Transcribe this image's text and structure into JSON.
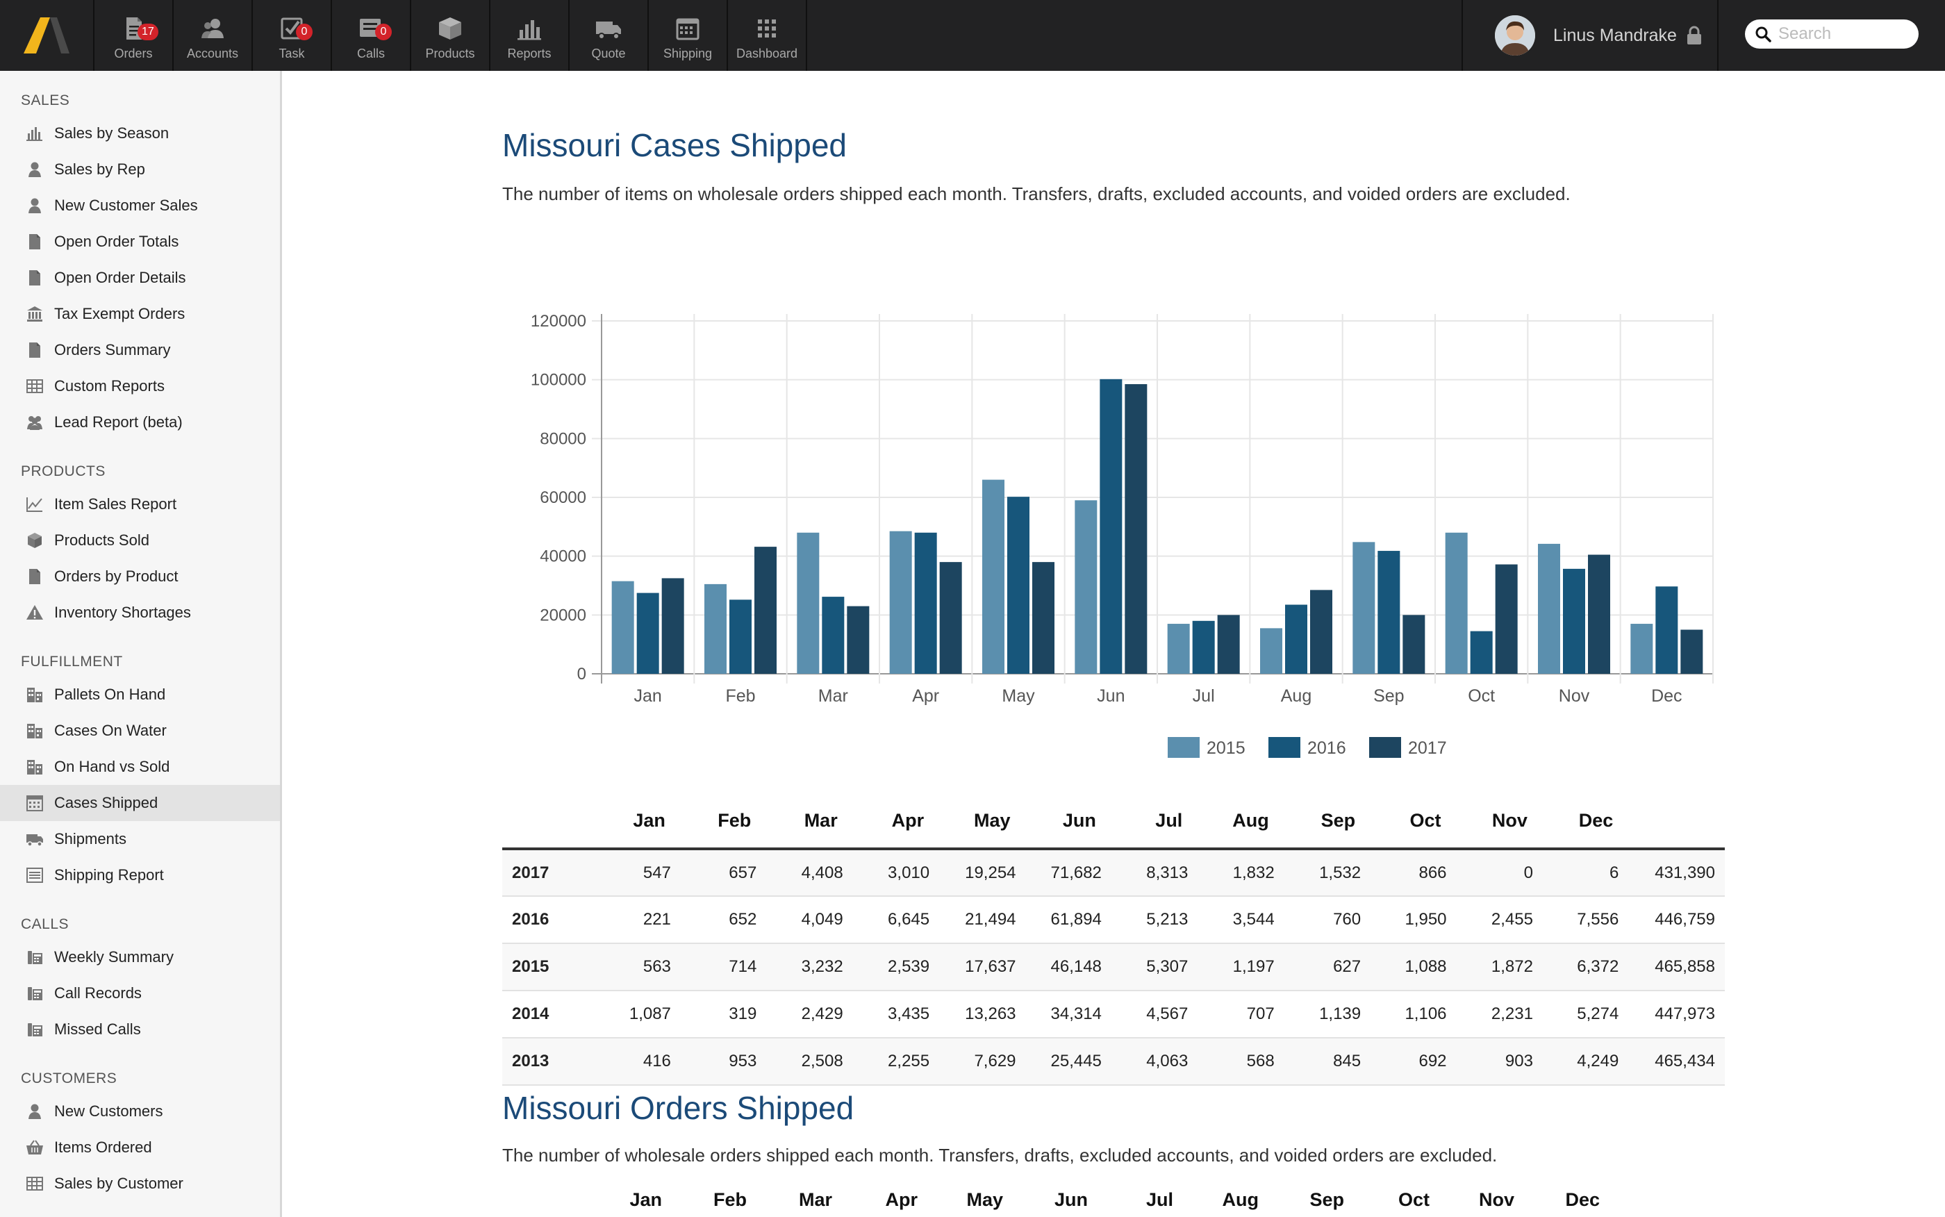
{
  "nav": {
    "items": [
      {
        "label": "Orders",
        "badge": "17",
        "icon": "orders-icon"
      },
      {
        "label": "Accounts",
        "badge": "",
        "icon": "accounts-icon"
      },
      {
        "label": "Task",
        "badge": "0",
        "icon": "task-icon"
      },
      {
        "label": "Calls",
        "badge": "0",
        "icon": "calls-icon"
      },
      {
        "label": "Products",
        "badge": "",
        "icon": "products-icon"
      },
      {
        "label": "Reports",
        "badge": "",
        "icon": "reports-icon"
      },
      {
        "label": "Quote",
        "badge": "",
        "icon": "quote-icon"
      },
      {
        "label": "Shipping",
        "badge": "",
        "icon": "shipping-icon"
      },
      {
        "label": "Dashboard",
        "badge": "",
        "icon": "dashboard-icon"
      }
    ],
    "user_name": "Linus Mandrake",
    "search_placeholder": "Search"
  },
  "sidebar": {
    "sections": [
      {
        "title": "SALES",
        "items": [
          {
            "label": "Sales by Season",
            "icon": "bar-chart-icon"
          },
          {
            "label": "Sales by Rep",
            "icon": "person-icon"
          },
          {
            "label": "New Customer Sales",
            "icon": "person-icon"
          },
          {
            "label": "Open Order Totals",
            "icon": "document-icon"
          },
          {
            "label": "Open Order Details",
            "icon": "document-icon"
          },
          {
            "label": "Tax Exempt Orders",
            "icon": "bank-icon"
          },
          {
            "label": "Orders Summary",
            "icon": "document-icon"
          },
          {
            "label": "Custom Reports",
            "icon": "table-icon"
          },
          {
            "label": "Lead Report (beta)",
            "icon": "group-icon"
          }
        ]
      },
      {
        "title": "PRODUCTS",
        "items": [
          {
            "label": "Item Sales Report",
            "icon": "line-chart-icon"
          },
          {
            "label": "Products Sold",
            "icon": "box-icon"
          },
          {
            "label": "Orders by Product",
            "icon": "document-icon"
          },
          {
            "label": "Inventory Shortages",
            "icon": "warning-icon"
          }
        ]
      },
      {
        "title": "FULFILLMENT",
        "items": [
          {
            "label": "Pallets On Hand",
            "icon": "building-icon"
          },
          {
            "label": "Cases On Water",
            "icon": "building-icon"
          },
          {
            "label": "On Hand vs Sold",
            "icon": "building-icon"
          },
          {
            "label": "Cases Shipped",
            "icon": "calendar-icon",
            "active": true
          },
          {
            "label": "Shipments",
            "icon": "truck-icon"
          },
          {
            "label": "Shipping Report",
            "icon": "list-icon"
          }
        ]
      },
      {
        "title": "CALLS",
        "items": [
          {
            "label": "Weekly Summary",
            "icon": "phone-icon"
          },
          {
            "label": "Call Records",
            "icon": "phone-icon"
          },
          {
            "label": "Missed Calls",
            "icon": "phone-icon"
          }
        ]
      },
      {
        "title": "CUSTOMERS",
        "items": [
          {
            "label": "New Customers",
            "icon": "person-icon"
          },
          {
            "label": "Items Ordered",
            "icon": "basket-icon"
          },
          {
            "label": "Sales by Customer",
            "icon": "table-icon"
          }
        ]
      }
    ]
  },
  "cases_section": {
    "title": "Missouri Cases Shipped",
    "description": "The number of items on wholesale orders shipped each month. Transfers, drafts, excluded accounts, and voided orders are excluded."
  },
  "orders_section": {
    "title": "Missouri Orders Shipped",
    "description": "The number of wholesale orders shipped each month. Transfers, drafts, excluded accounts, and voided orders are excluded."
  },
  "colors": {
    "s2015": "#5b8fae",
    "s2016": "#17567b",
    "s2017": "#1d4560",
    "title": "#1b4a78"
  },
  "chart_data": {
    "type": "bar",
    "title": "",
    "categories": [
      "Jan",
      "Feb",
      "Mar",
      "Apr",
      "May",
      "Jun",
      "Jul",
      "Aug",
      "Sep",
      "Oct",
      "Nov",
      "Dec"
    ],
    "series": [
      {
        "name": "2015",
        "values": [
          31500,
          30500,
          48000,
          48500,
          66000,
          59000,
          17000,
          15500,
          44800,
          48000,
          44200,
          17000
        ]
      },
      {
        "name": "2016",
        "values": [
          27500,
          25200,
          26200,
          48000,
          60200,
          100200,
          18000,
          23500,
          41800,
          14500,
          35700,
          29700
        ]
      },
      {
        "name": "2017",
        "values": [
          32500,
          43200,
          23000,
          38000,
          38000,
          98500,
          20000,
          28500,
          20000,
          37200,
          40500,
          15000
        ]
      }
    ],
    "ylim": [
      0,
      120000
    ],
    "yticks": [
      "0",
      "20000",
      "40000",
      "60000",
      "80000",
      "100000",
      "120000"
    ],
    "legend": "bottom-center"
  },
  "cases_table": {
    "columns": [
      "",
      "Jan",
      "Feb",
      "Mar",
      "Apr",
      "May",
      "Jun",
      "Jul",
      "Aug",
      "Sep",
      "Oct",
      "Nov",
      "Dec",
      ""
    ],
    "rows": [
      [
        "2017",
        "547",
        "657",
        "4,408",
        "3,010",
        "19,254",
        "71,682",
        "8,313",
        "1,832",
        "1,532",
        "866",
        "0",
        "6",
        "431,390"
      ],
      [
        "2016",
        "221",
        "652",
        "4,049",
        "6,645",
        "21,494",
        "61,894",
        "5,213",
        "3,544",
        "760",
        "1,950",
        "2,455",
        "7,556",
        "446,759"
      ],
      [
        "2015",
        "563",
        "714",
        "3,232",
        "2,539",
        "17,637",
        "46,148",
        "5,307",
        "1,197",
        "627",
        "1,088",
        "1,872",
        "6,372",
        "465,858"
      ],
      [
        "2014",
        "1,087",
        "319",
        "2,429",
        "3,435",
        "13,263",
        "34,314",
        "4,567",
        "707",
        "1,139",
        "1,106",
        "2,231",
        "5,274",
        "447,973"
      ],
      [
        "2013",
        "416",
        "953",
        "2,508",
        "2,255",
        "7,629",
        "25,445",
        "4,063",
        "568",
        "845",
        "692",
        "903",
        "4,249",
        "465,434"
      ]
    ]
  },
  "orders_table": {
    "columns": [
      "Jan",
      "Feb",
      "Mar",
      "Apr",
      "May",
      "Jun",
      "Jul",
      "Aug",
      "Sep",
      "Oct",
      "Nov",
      "Dec"
    ]
  }
}
